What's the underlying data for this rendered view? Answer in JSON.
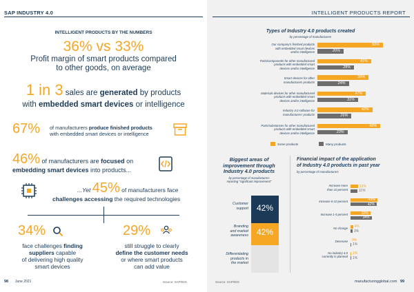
{
  "left": {
    "header": "SAP INDUSTRY 4.0",
    "section_title": "INTELLIGENT PRODUCTS BY THE NUMBERS",
    "stat1": {
      "big": "36% vs 33%",
      "text_line1": "Profit margin of smart products compared",
      "text_line2": "to other goods, on average"
    },
    "stat2": {
      "big": "1 in 3",
      "text_a": " sales are ",
      "text_b": "generated",
      "text_c": " by products",
      "text_line2a": "with ",
      "text_line2b": "embedded smart devices",
      "text_line2c": " or intelligence"
    },
    "stat3": {
      "big": "67%",
      "line1a": "of manufacturers ",
      "line1b": "produce finished products",
      "line2": "with embedded smart devices or intelligence"
    },
    "stat4": {
      "big": "46%",
      "line1a": " of manufacturers are ",
      "line1b": "focused",
      "line1c": " on",
      "line2a": "embedding smart devices",
      "line2b": " into products..."
    },
    "stat5": {
      "pre": "...Yet ",
      "big": "45%",
      "line1": " of manufacturers face",
      "line2a": "challenges accessing",
      "line2b": " the required technologies"
    },
    "stat6": {
      "big": "34%",
      "l1a": "face challenges ",
      "l1b": "finding",
      "l2a": "suppliers",
      "l2b": " capable",
      "l3": "of delivering high quality",
      "l4": "smart devices"
    },
    "stat7": {
      "big": "29%",
      "l1": "still struggle to clearly",
      "l2a": "define the customer needs",
      "l3": "or where smart products",
      "l4": "can add value"
    },
    "footer_page": "98",
    "footer_date": "June 2021",
    "footer_source": "Source: SAP/IDG"
  },
  "right": {
    "header": "INTELLIGENT PRODUCTS REPORT",
    "types_title": "Types of Industry 4.0 products created",
    "types_subtitle": "by percentage of manufacturers",
    "types_rows": [
      {
        "label": [
          "Our company's finished products",
          "with embedded smart devices",
          "and/or intelligence"
        ],
        "some": 50,
        "many": 20
      },
      {
        "label": [
          "Parts/components for other manufactured",
          "products with embedded smart",
          "devices and/or intelligence"
        ],
        "some": 41,
        "many": 28
      },
      {
        "label": [
          "Smart devices for other",
          "manufacturers products"
        ],
        "some": 39,
        "many": 24
      },
      {
        "label": [
          "Materials devices for other manufactured",
          "products with embedded smart",
          "devices and/or intelligence"
        ],
        "some": 37,
        "many": 31
      },
      {
        "label": [
          "Industry 4.0 software for",
          "manufacturers' products"
        ],
        "some": 42,
        "many": 26
      },
      {
        "label": [
          "Parts/substances for other manufactured",
          "products with embedded smart",
          "devices and/or intelligence"
        ],
        "some": 48,
        "many": 23
      }
    ],
    "legend_some": "Some products",
    "legend_many": "Many products",
    "areas_title": [
      "Biggest areas of",
      "improvement through",
      "Industry 4.0 products"
    ],
    "areas_subtitle": [
      "by percentage of manufacturers",
      "reporting \"significant improvement\""
    ],
    "areas": [
      {
        "label": [
          "Customer",
          "support"
        ],
        "value": "42%"
      },
      {
        "label": [
          "Branding",
          "and market",
          "awareness"
        ],
        "value": "42%"
      },
      {
        "label": [
          "Differentiating",
          "products in",
          "the market"
        ],
        "value": ""
      }
    ],
    "fin_title": [
      "Financial impact of the application",
      "of Industry 4.0 products in past year"
    ],
    "fin_subtitle": "by percentage of manufacturers",
    "fin_rows": [
      {
        "label": [
          "Increase more",
          "than 10 percent"
        ],
        "some": 12,
        "many": 11
      },
      {
        "label": [
          "Increase 6-10 percent"
        ],
        "some": 43,
        "many": 42
      },
      {
        "label": [
          "Increase 1-5 percent"
        ],
        "some": 32,
        "many": 34
      },
      {
        "label": [
          "No change"
        ],
        "some": 4,
        "many": 3
      },
      {
        "label": [
          "Decrease"
        ],
        "some": 0,
        "many": 1
      },
      {
        "label": [
          "No industry 4.0",
          "currently in planned"
        ],
        "some": 1,
        "many": 1
      }
    ],
    "footer_source": "Source: SAP/IDG",
    "footer_site": "manufacturingglobal.com",
    "footer_page": "99"
  },
  "colors": {
    "orange": "#f5a623",
    "navy": "#1b3a57",
    "grey": "#6d6d6d"
  }
}
